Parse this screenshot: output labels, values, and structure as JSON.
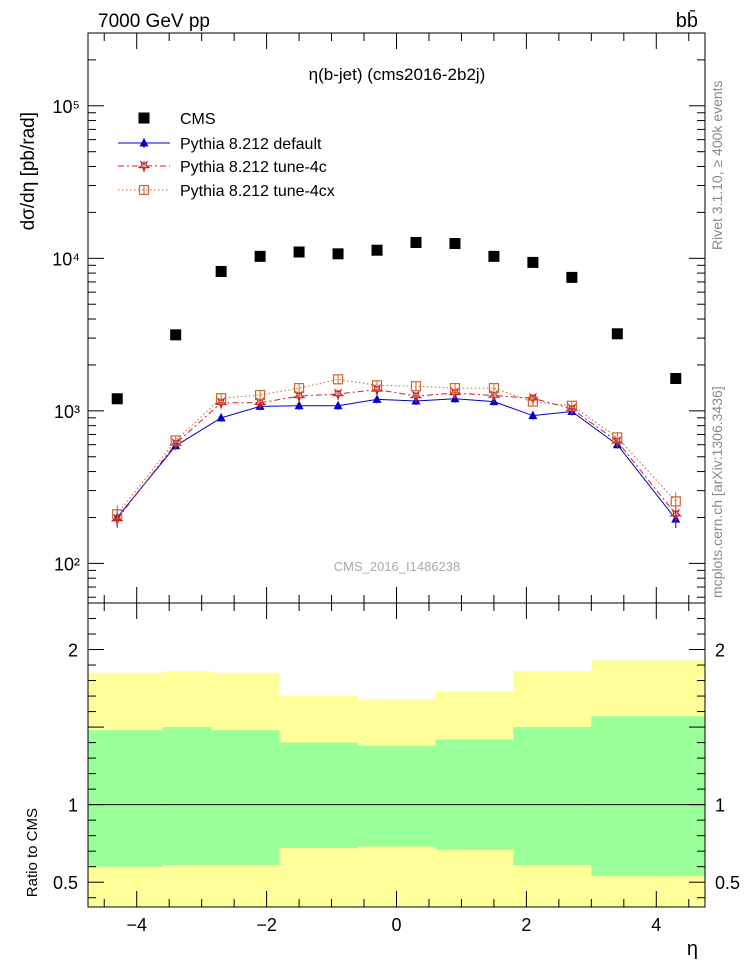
{
  "header": {
    "energy_label": "7000 GeV pp",
    "process_label": "bb̄",
    "plot_title": "η(b-jet) (cms2016-2b2j)",
    "watermark": "CMS_2016_I1486238",
    "side_label_top": "Rivet 3.1.10, ≥ 400k events",
    "side_label_bottom": "mcplots.cern.ch [arXiv:1306.3436]"
  },
  "chart_data": [
    {
      "type": "scatter",
      "yscale": "log",
      "ylabel": "dσ/dη [pb/rad]",
      "xlabel": "",
      "xlim": [
        -4.75,
        4.75
      ],
      "ylim": [
        55,
        300000
      ],
      "y_ticks": [
        100,
        1000,
        10000,
        100000
      ],
      "y_tick_labels": [
        "10²",
        "10³",
        "10⁴",
        "10⁵"
      ],
      "legend_position": "top-left",
      "x": [
        -4.3,
        -3.4,
        -2.7,
        -2.1,
        -1.5,
        -0.9,
        -0.3,
        0.3,
        0.9,
        1.5,
        2.1,
        2.7,
        3.4,
        4.3
      ],
      "series": [
        {
          "name": "CMS",
          "marker": "square",
          "color": "#000000",
          "values": [
            1200,
            3150,
            8200,
            10300,
            11000,
            10700,
            11300,
            12700,
            12500,
            10300,
            9400,
            7500,
            3200,
            1630
          ]
        },
        {
          "name": "Pythia 8.212 default",
          "marker": "triangle",
          "color": "#0000cc",
          "values": [
            200,
            590,
            900,
            1070,
            1080,
            1080,
            1190,
            1160,
            1200,
            1150,
            930,
            990,
            600,
            195
          ]
        },
        {
          "name": "Pythia 8.212 tune-4c",
          "marker": "star",
          "color": "#cc2222",
          "values": [
            195,
            610,
            1130,
            1130,
            1250,
            1290,
            1380,
            1250,
            1310,
            1260,
            1210,
            1030,
            630,
            210
          ]
        },
        {
          "name": "Pythia 8.212 tune-4cx",
          "marker": "open-square",
          "color": "#cc6633",
          "values": [
            210,
            640,
            1210,
            1270,
            1410,
            1610,
            1470,
            1450,
            1410,
            1410,
            1150,
            1080,
            670,
            255
          ]
        }
      ]
    },
    {
      "type": "area",
      "ylabel": "Ratio to CMS",
      "xlabel": "η",
      "xlim": [
        -4.75,
        4.75
      ],
      "ylim": [
        0.34,
        2.3
      ],
      "x_ticks": [
        -4,
        -2,
        0,
        2,
        4
      ],
      "x_tick_labels": [
        "−4",
        "−2",
        "0",
        "2",
        "4"
      ],
      "y_ticks": [
        0.5,
        1,
        2
      ],
      "y_tick_labels": [
        "0.5",
        "1",
        "2"
      ],
      "reference_line": 1,
      "bins": [
        -4.75,
        -3.6,
        -2.85,
        -1.8,
        -0.6,
        0.6,
        1.8,
        3.0,
        4.75
      ],
      "bands": [
        {
          "name": "yellow-band",
          "color": "#ffff99",
          "low": [
            0.0,
            0.0,
            0.0,
            0.0,
            0.0,
            0.0,
            0.0,
            0.0
          ],
          "high": [
            1.85,
            1.86,
            1.85,
            1.7,
            1.68,
            1.73,
            1.86,
            1.93
          ]
        },
        {
          "name": "green-band",
          "color": "#99ff99",
          "low": [
            0.6,
            0.61,
            0.61,
            0.72,
            0.73,
            0.71,
            0.61,
            0.54
          ],
          "high": [
            1.48,
            1.5,
            1.48,
            1.4,
            1.38,
            1.42,
            1.5,
            1.57
          ]
        }
      ]
    }
  ]
}
